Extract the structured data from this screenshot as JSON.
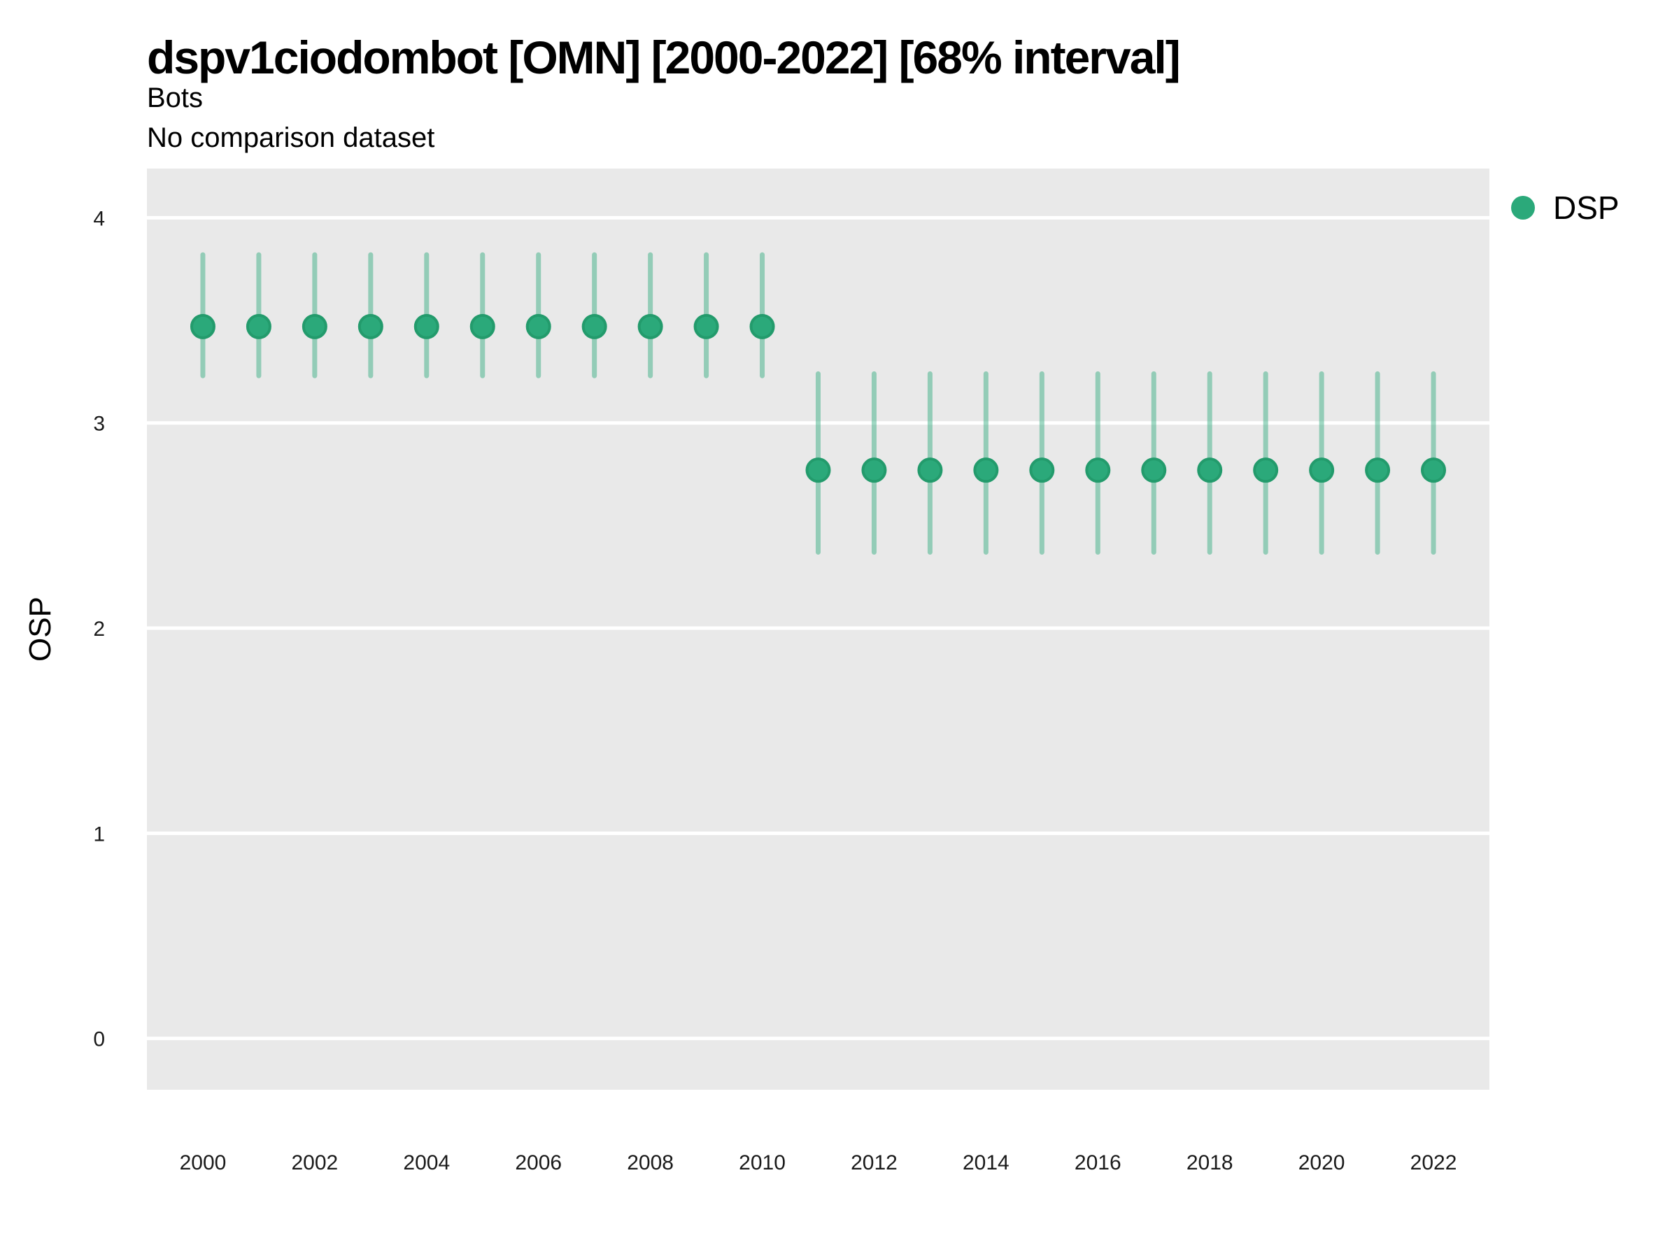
{
  "header": {
    "title": "dspv1ciodombot [OMN] [2000-2022] [68% interval]",
    "subtitle": "Bots",
    "note": "No comparison dataset"
  },
  "legend": {
    "items": [
      {
        "label": "DSP",
        "color": "#2ba97a"
      }
    ]
  },
  "chart_data": {
    "type": "scatter",
    "title": "dspv1ciodombot [OMN] [2000-2022] [68% interval]",
    "subtitle": "Bots",
    "note": "No comparison dataset",
    "xlabel": "",
    "ylabel": "OSP",
    "interval_label": "68% interval",
    "x_ticks": [
      2000,
      2002,
      2004,
      2006,
      2008,
      2010,
      2012,
      2014,
      2016,
      2018,
      2020,
      2022
    ],
    "y_ticks": [
      0,
      1,
      2,
      3,
      4
    ],
    "xlim": [
      1999.0,
      2023.0
    ],
    "ylim": [
      -0.25,
      4.24
    ],
    "grid": {
      "horizontal_major": true,
      "vertical": false,
      "minor": false,
      "color": "#ffffff"
    },
    "panel_bg": "#e9e9e9",
    "legend_position": "right",
    "series": [
      {
        "name": "DSP",
        "color": "#2ba97a",
        "marker_stroke": "#239b6c",
        "interval_color": "rgba(43, 169, 122, 0.45)",
        "points": [
          {
            "x": 2000,
            "y": 3.47,
            "lo": 3.23,
            "hi": 3.82
          },
          {
            "x": 2001,
            "y": 3.47,
            "lo": 3.23,
            "hi": 3.82
          },
          {
            "x": 2002,
            "y": 3.47,
            "lo": 3.23,
            "hi": 3.82
          },
          {
            "x": 2003,
            "y": 3.47,
            "lo": 3.23,
            "hi": 3.82
          },
          {
            "x": 2004,
            "y": 3.47,
            "lo": 3.23,
            "hi": 3.82
          },
          {
            "x": 2005,
            "y": 3.47,
            "lo": 3.23,
            "hi": 3.82
          },
          {
            "x": 2006,
            "y": 3.47,
            "lo": 3.23,
            "hi": 3.82
          },
          {
            "x": 2007,
            "y": 3.47,
            "lo": 3.23,
            "hi": 3.82
          },
          {
            "x": 2008,
            "y": 3.47,
            "lo": 3.23,
            "hi": 3.82
          },
          {
            "x": 2009,
            "y": 3.47,
            "lo": 3.23,
            "hi": 3.82
          },
          {
            "x": 2010,
            "y": 3.47,
            "lo": 3.23,
            "hi": 3.82
          },
          {
            "x": 2011,
            "y": 2.77,
            "lo": 2.37,
            "hi": 3.24
          },
          {
            "x": 2012,
            "y": 2.77,
            "lo": 2.37,
            "hi": 3.24
          },
          {
            "x": 2013,
            "y": 2.77,
            "lo": 2.37,
            "hi": 3.24
          },
          {
            "x": 2014,
            "y": 2.77,
            "lo": 2.37,
            "hi": 3.24
          },
          {
            "x": 2015,
            "y": 2.77,
            "lo": 2.37,
            "hi": 3.24
          },
          {
            "x": 2016,
            "y": 2.77,
            "lo": 2.37,
            "hi": 3.24
          },
          {
            "x": 2017,
            "y": 2.77,
            "lo": 2.37,
            "hi": 3.24
          },
          {
            "x": 2018,
            "y": 2.77,
            "lo": 2.37,
            "hi": 3.24
          },
          {
            "x": 2019,
            "y": 2.77,
            "lo": 2.37,
            "hi": 3.24
          },
          {
            "x": 2020,
            "y": 2.77,
            "lo": 2.37,
            "hi": 3.24
          },
          {
            "x": 2021,
            "y": 2.77,
            "lo": 2.37,
            "hi": 3.24
          },
          {
            "x": 2022,
            "y": 2.77,
            "lo": 2.37,
            "hi": 3.24
          }
        ]
      }
    ]
  }
}
